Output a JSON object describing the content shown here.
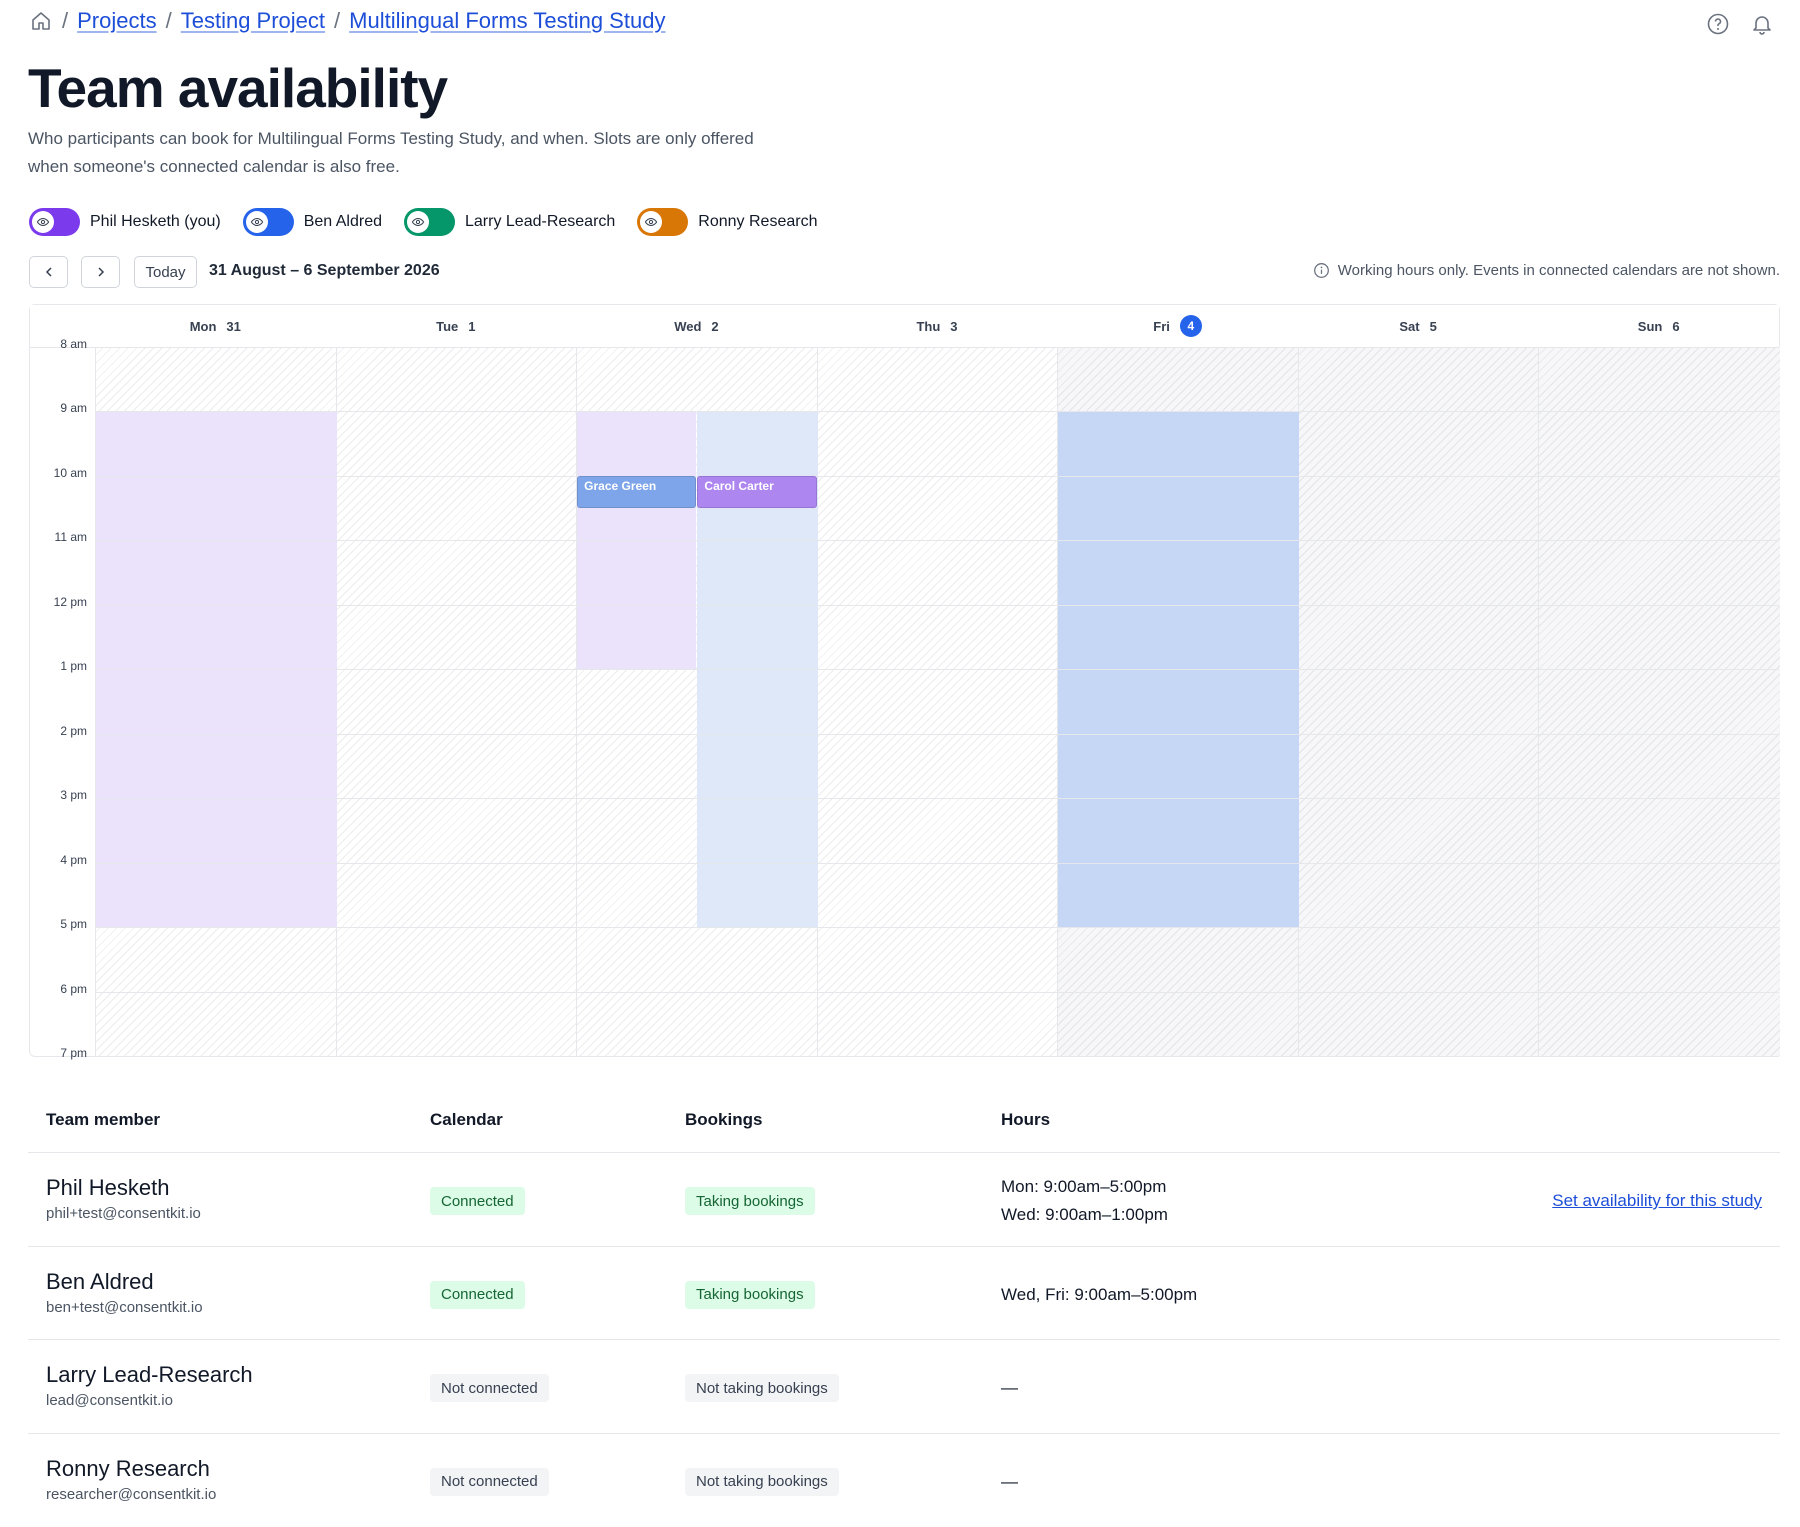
{
  "breadcrumb": [
    "Projects",
    "Testing Project",
    "Multilingual Forms Testing Study"
  ],
  "title": "Team availability",
  "description": "Who participants can book for Multilingual Forms Testing Study, and when. Slots are only offered when someone's connected calendar is also free.",
  "members": [
    {
      "name": "Phil Hesketh (you)",
      "color": "#7c3aed"
    },
    {
      "name": "Ben Aldred",
      "color": "#2563eb"
    },
    {
      "name": "Larry Lead-Research",
      "color": "#059669"
    },
    {
      "name": "Ronny Research",
      "color": "#d97706"
    }
  ],
  "nav": {
    "today": "Today",
    "range": "31 August – 6 September 2026",
    "note": "Working hours only. Events in connected calendars are not shown."
  },
  "calendar": {
    "days": [
      {
        "name": "Mon",
        "date": "31"
      },
      {
        "name": "Tue",
        "date": "1"
      },
      {
        "name": "Wed",
        "date": "2"
      },
      {
        "name": "Thu",
        "date": "3"
      },
      {
        "name": "Fri",
        "date": "4"
      },
      {
        "name": "Sat",
        "date": "5"
      },
      {
        "name": "Sun",
        "date": "6"
      }
    ],
    "today_index": 4,
    "hours": [
      {
        "value": 8,
        "label": "8 am"
      },
      {
        "value": 9,
        "label": "9 am"
      },
      {
        "value": 10,
        "label": "10 am"
      },
      {
        "value": 11,
        "label": "11 am"
      },
      {
        "value": 12,
        "label": "12 pm"
      },
      {
        "value": 13,
        "label": "1 pm"
      },
      {
        "value": 14,
        "label": "2 pm"
      },
      {
        "value": 15,
        "label": "3 pm"
      },
      {
        "value": 16,
        "label": "4 pm"
      },
      {
        "value": 17,
        "label": "5 pm"
      },
      {
        "value": 18,
        "label": "6 pm"
      },
      {
        "value": 19,
        "label": "7 pm"
      }
    ],
    "availability": [
      {
        "member": 0,
        "day": 0,
        "start": 9,
        "end": 17,
        "color": "#ebe3fb"
      },
      {
        "member": 0,
        "day": 2,
        "start": 9,
        "end": 13,
        "color": "#ebe3fb"
      },
      {
        "member": 1,
        "day": 2,
        "start": 9,
        "end": 17,
        "color": "#dfe8f9"
      },
      {
        "member": 1,
        "day": 4,
        "start": 9,
        "end": 17,
        "color": "#c6d7f5"
      }
    ],
    "events": [
      {
        "name": "Grace Green",
        "member": 0,
        "day": 2,
        "start": 10,
        "end": 10.5,
        "color": "#7ea5ea"
      },
      {
        "name": "Carol Carter",
        "member": 1,
        "day": 2,
        "start": 10,
        "end": 10.5,
        "color": "#ae86f0"
      }
    ]
  },
  "table": {
    "headers": [
      "Team member",
      "Calendar",
      "Bookings",
      "Hours"
    ],
    "rows": [
      {
        "name": "Phil Hesketh",
        "email": "phil+test@consentkit.io",
        "calendar": {
          "label": "Connected",
          "tone": "green"
        },
        "bookings": {
          "label": "Taking bookings",
          "tone": "green"
        },
        "hours": [
          "Mon: 9:00am–5:00pm",
          "Wed: 9:00am–1:00pm"
        ],
        "action": "Set availability for this study"
      },
      {
        "name": "Ben Aldred",
        "email": "ben+test@consentkit.io",
        "calendar": {
          "label": "Connected",
          "tone": "green"
        },
        "bookings": {
          "label": "Taking bookings",
          "tone": "green"
        },
        "hours": [
          "Wed, Fri: 9:00am–5:00pm"
        ]
      },
      {
        "name": "Larry Lead-Research",
        "email": "lead@consentkit.io",
        "calendar": {
          "label": "Not connected",
          "tone": "gray"
        },
        "bookings": {
          "label": "Not taking bookings",
          "tone": "gray"
        },
        "hours": [
          "—"
        ]
      },
      {
        "name": "Ronny Research",
        "email": "researcher@consentkit.io",
        "calendar": {
          "label": "Not connected",
          "tone": "gray"
        },
        "bookings": {
          "label": "Not taking bookings",
          "tone": "gray"
        },
        "hours": [
          "—"
        ]
      }
    ]
  }
}
